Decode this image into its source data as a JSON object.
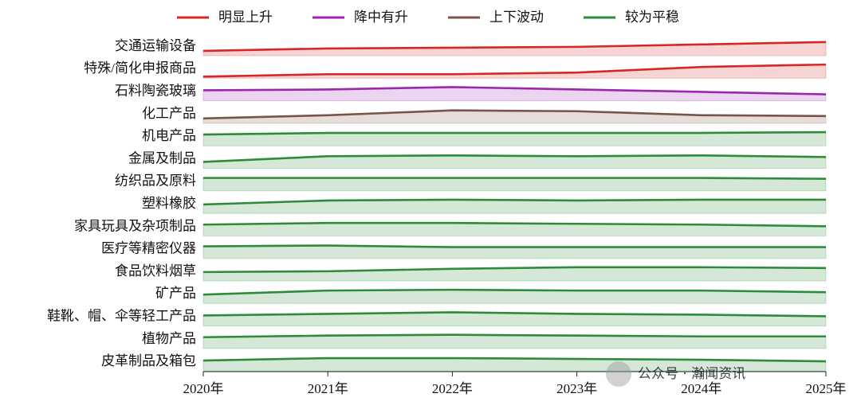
{
  "chart_data": {
    "type": "ridgeline",
    "categories": [
      "2020年",
      "2021年",
      "2022年",
      "2023年",
      "2024年",
      "2025年"
    ],
    "groups": [
      {
        "name": "明显上升",
        "color": "#d62728"
      },
      {
        "name": "降中有升",
        "color": "#9b27b0"
      },
      {
        "name": "上下波动",
        "color": "#795548"
      },
      {
        "name": "较为平稳",
        "color": "#2e8b3a"
      }
    ],
    "ylim": [
      0,
      28
    ],
    "series": [
      {
        "name": "交通运输设备",
        "group": 0,
        "color": "#d62728",
        "values": [
          6,
          9,
          10,
          11,
          14,
          17
        ]
      },
      {
        "name": "特殊/简化申报商品",
        "group": 0,
        "color": "#d62728",
        "values": [
          2,
          5,
          5,
          7,
          14,
          17
        ]
      },
      {
        "name": "石料陶瓷玻璃",
        "group": 1,
        "color": "#9b27b0",
        "values": [
          13,
          14,
          17,
          14,
          11,
          8
        ]
      },
      {
        "name": "化工产品",
        "group": 2,
        "color": "#795548",
        "values": [
          6,
          10,
          16,
          15,
          10,
          9
        ]
      },
      {
        "name": "机电产品",
        "group": 3,
        "color": "#2e8b3a",
        "values": [
          14,
          16,
          16,
          16,
          16,
          17
        ]
      },
      {
        "name": "金属及制品",
        "group": 3,
        "color": "#2e8b3a",
        "values": [
          8,
          15,
          16,
          15,
          16,
          14
        ]
      },
      {
        "name": "纺织品及原料",
        "group": 3,
        "color": "#2e8b3a",
        "values": [
          16,
          16,
          16,
          16,
          16,
          15
        ]
      },
      {
        "name": "塑料橡胶",
        "group": 3,
        "color": "#2e8b3a",
        "values": [
          11,
          16,
          17,
          16,
          17,
          17
        ]
      },
      {
        "name": "家具玩具及杂项制品",
        "group": 3,
        "color": "#2e8b3a",
        "values": [
          14,
          16,
          16,
          15,
          14,
          12
        ]
      },
      {
        "name": "医疗等精密仪器",
        "group": 3,
        "color": "#2e8b3a",
        "values": [
          15,
          16,
          14,
          14,
          14,
          14
        ]
      },
      {
        "name": "食品饮料烟草",
        "group": 3,
        "color": "#2e8b3a",
        "values": [
          11,
          12,
          15,
          17,
          17,
          16
        ]
      },
      {
        "name": "矿产品",
        "group": 3,
        "color": "#2e8b3a",
        "values": [
          11,
          16,
          17,
          16,
          16,
          14
        ]
      },
      {
        "name": "鞋靴、帽、伞等轻工产品",
        "group": 3,
        "color": "#2e8b3a",
        "values": [
          13,
          15,
          17,
          15,
          14,
          12
        ]
      },
      {
        "name": "植物产品",
        "group": 3,
        "color": "#2e8b3a",
        "values": [
          14,
          16,
          17,
          16,
          15,
          15
        ]
      },
      {
        "name": "皮革制品及箱包",
        "group": 3,
        "color": "#2e8b3a",
        "values": [
          13,
          16,
          16,
          15,
          14,
          12
        ]
      }
    ],
    "watermark": "公众号 · 瀚闻资讯"
  }
}
